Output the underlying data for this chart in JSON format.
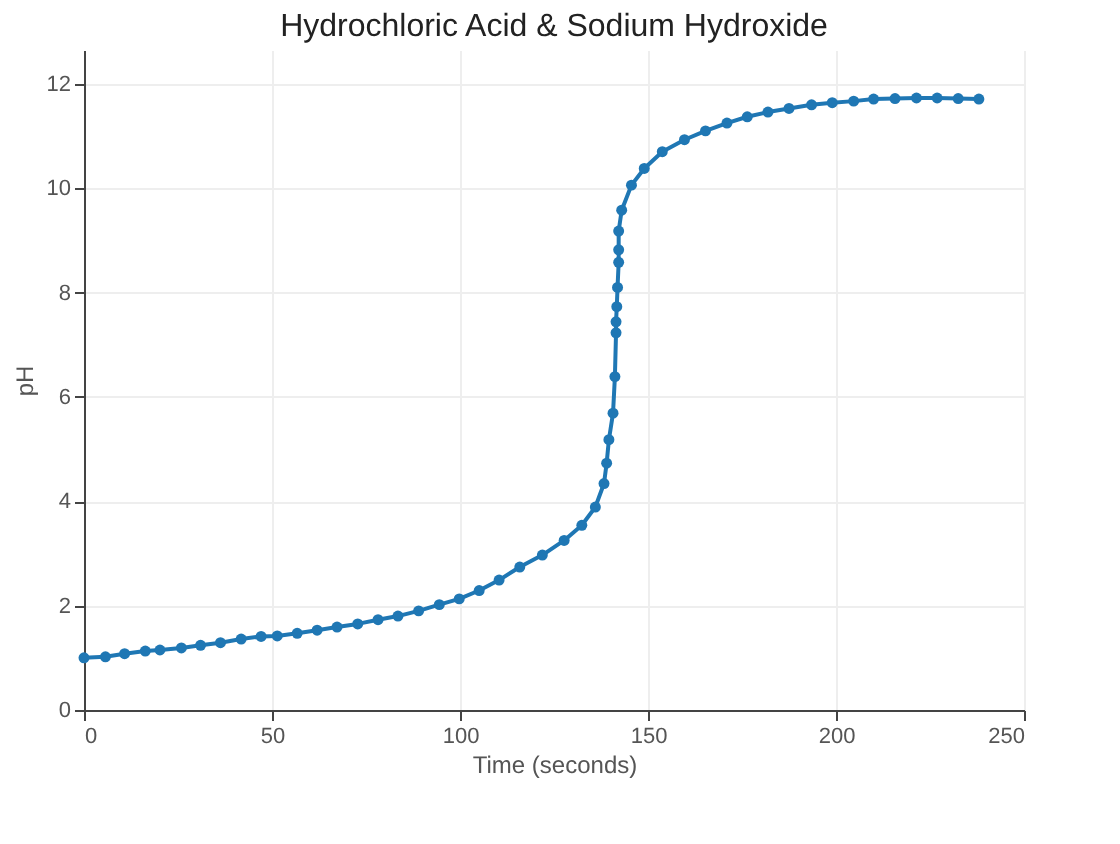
{
  "chart_data": {
    "type": "line",
    "title": "Hydrochloric Acid & Sodium Hydroxide",
    "xlabel": "Time (seconds)",
    "ylabel": "pH",
    "series": [
      {
        "color": "#1f77b4",
        "x": [
          0,
          5.7,
          10.8,
          16.3,
          20.2,
          25.9,
          31,
          36.3,
          41.8,
          47.1,
          51.4,
          56.7,
          62,
          67.3,
          72.8,
          78.2,
          83.5,
          89,
          94.5,
          99.8,
          105.1,
          110.4,
          115.9,
          121.9,
          127.7,
          132.4,
          136,
          138.3,
          139,
          139.6,
          140.7,
          141.2,
          141.5,
          141.5,
          141.7,
          141.9,
          142.2,
          142.2,
          142.2,
          143,
          145.6,
          149,
          153.8,
          159.7,
          165.3,
          171,
          176.4,
          181.9,
          187.5,
          193.5,
          199,
          204.7,
          210,
          215.7,
          221.4,
          226.9,
          232.5,
          238
        ],
        "values": [
          1.0,
          1.02,
          1.08,
          1.13,
          1.15,
          1.19,
          1.24,
          1.29,
          1.36,
          1.41,
          1.42,
          1.47,
          1.53,
          1.59,
          1.65,
          1.73,
          1.8,
          1.9,
          2.02,
          2.13,
          2.29,
          2.49,
          2.74,
          2.97,
          3.25,
          3.54,
          3.89,
          4.34,
          4.73,
          5.18,
          5.69,
          6.39,
          7.23,
          7.44,
          7.73,
          8.1,
          8.58,
          8.82,
          9.18,
          9.58,
          10.06,
          10.38,
          10.7,
          10.93,
          11.1,
          11.25,
          11.37,
          11.46,
          11.53,
          11.6,
          11.64,
          11.67,
          11.71,
          11.72,
          11.73,
          11.73,
          11.72,
          11.71
        ]
      }
    ],
    "xlim": [
      0,
      250
    ],
    "xticks": [
      0,
      50,
      100,
      150,
      200,
      250
    ],
    "ylim": [
      0,
      12.65
    ],
    "yticks": [
      0,
      2,
      4,
      6,
      8,
      10,
      12
    ],
    "grid": true,
    "marker": "circle",
    "line_style": "solid"
  }
}
